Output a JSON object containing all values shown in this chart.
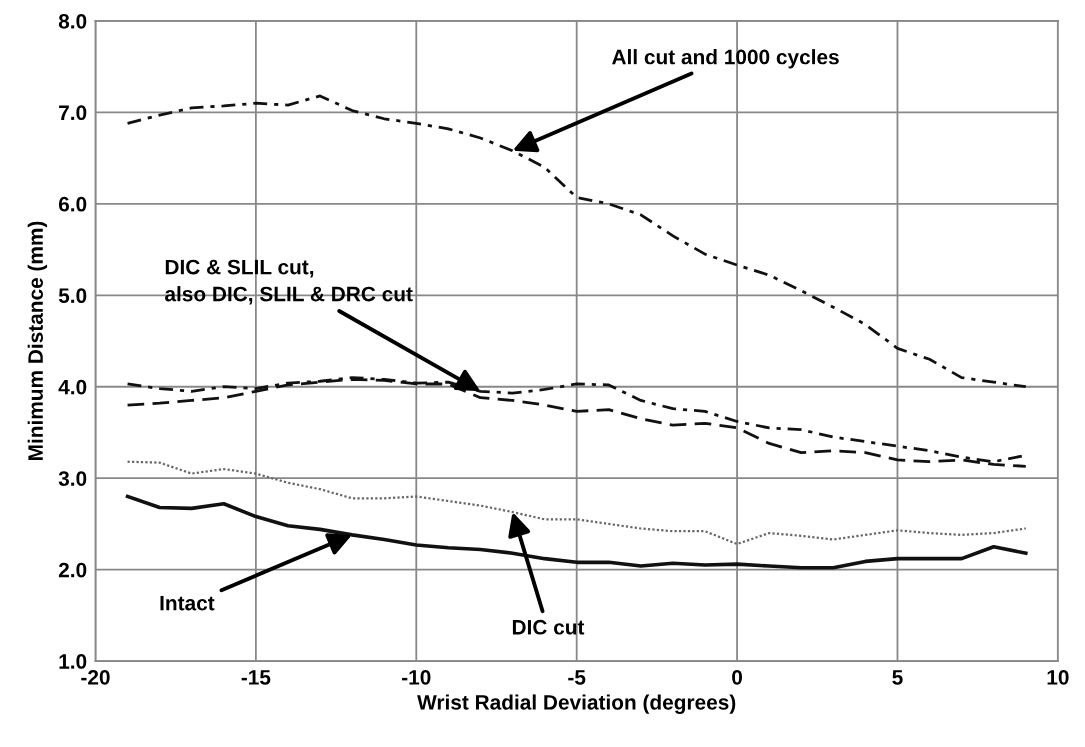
{
  "chart_data": {
    "type": "line",
    "xlabel": "Wrist Radial Deviation (degrees)",
    "ylabel": "Minimum Distance (mm)",
    "x": [
      -19,
      -18,
      -17,
      -16,
      -15,
      -14,
      -13,
      -12,
      -11,
      -10,
      -9,
      -8,
      -7,
      -6,
      -5,
      -4,
      -3,
      -2,
      -1,
      0,
      1,
      2,
      3,
      4,
      5,
      6,
      7,
      8,
      9
    ],
    "series": [
      {
        "color": "#111111",
        "line_style": "dashdot",
        "values": [
          6.88,
          6.97,
          7.05,
          7.07,
          7.1,
          7.08,
          7.18,
          7.02,
          6.93,
          6.88,
          6.82,
          6.72,
          6.58,
          6.4,
          6.07,
          6.0,
          5.88,
          5.65,
          5.45,
          5.33,
          5.22,
          5.05,
          4.87,
          4.68,
          4.42,
          4.3,
          4.1,
          4.05,
          4.0
        ]
      },
      {
        "color": "#111111",
        "line_style": "dashdot",
        "values": [
          4.03,
          3.98,
          3.95,
          4.0,
          3.98,
          4.04,
          4.06,
          4.1,
          4.08,
          4.04,
          4.05,
          3.95,
          3.93,
          3.97,
          4.03,
          4.02,
          3.85,
          3.76,
          3.73,
          3.62,
          3.55,
          3.53,
          3.45,
          3.4,
          3.35,
          3.3,
          3.23,
          3.18,
          3.25
        ]
      },
      {
        "color": "#111111",
        "line_style": "dashed",
        "values": [
          3.8,
          3.82,
          3.85,
          3.88,
          3.95,
          4.02,
          4.05,
          4.08,
          4.07,
          4.03,
          4.03,
          3.88,
          3.85,
          3.8,
          3.73,
          3.75,
          3.65,
          3.58,
          3.6,
          3.55,
          3.38,
          3.28,
          3.3,
          3.28,
          3.2,
          3.18,
          3.2,
          3.15,
          3.13
        ]
      },
      {
        "color": "#666666",
        "line_style": "dotted",
        "values": [
          3.18,
          3.17,
          3.05,
          3.1,
          3.05,
          2.95,
          2.88,
          2.78,
          2.78,
          2.8,
          2.75,
          2.7,
          2.63,
          2.55,
          2.55,
          2.5,
          2.45,
          2.42,
          2.42,
          2.28,
          2.4,
          2.37,
          2.33,
          2.38,
          2.43,
          2.4,
          2.38,
          2.4,
          2.45
        ]
      },
      {
        "color": "#111111",
        "line_style": "solid",
        "values": [
          2.8,
          2.68,
          2.67,
          2.72,
          2.58,
          2.48,
          2.44,
          2.38,
          2.33,
          2.27,
          2.24,
          2.22,
          2.18,
          2.12,
          2.08,
          2.08,
          2.04,
          2.07,
          2.05,
          2.06,
          2.04,
          2.02,
          2.02,
          2.09,
          2.12,
          2.12,
          2.12,
          2.25,
          2.18
        ]
      }
    ],
    "xlim": [
      -20,
      10
    ],
    "xticks": [
      -20,
      -15,
      -10,
      -5,
      0,
      5,
      10
    ],
    "ylim": [
      1,
      8
    ],
    "yticks": [
      {
        "value": 1,
        "label": "1.0"
      },
      {
        "value": 2,
        "label": "2.0"
      },
      {
        "value": 3,
        "label": "3.0"
      },
      {
        "value": 4,
        "label": "4.0"
      },
      {
        "value": 5,
        "label": "5.0"
      },
      {
        "value": 6,
        "label": "6.0"
      },
      {
        "value": 7,
        "label": "7.0"
      },
      {
        "value": 8,
        "label": "8.0"
      }
    ],
    "grid": true,
    "annotations": [
      {
        "text": "All cut and 1000 cycles",
        "x": -7,
        "y": 6.58
      },
      {
        "text": "DIC & SLIL cut,\nalso DIC, SLIL & DRC cut",
        "x": -8,
        "y": 3.95
      },
      {
        "text": "Intact",
        "x": -12,
        "y": 2.38
      },
      {
        "text": "DIC cut",
        "x": -7,
        "y": 2.63
      }
    ]
  }
}
